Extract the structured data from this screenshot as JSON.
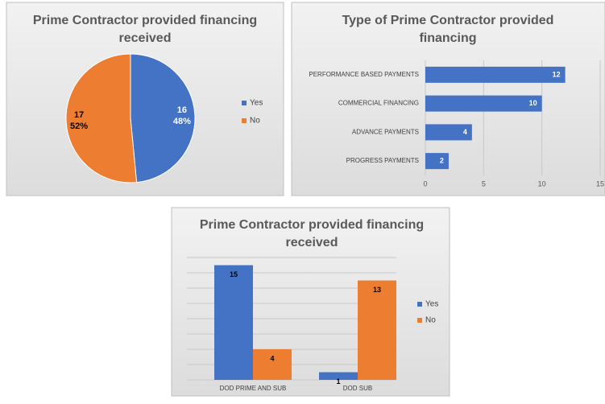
{
  "chart_data": [
    {
      "type": "pie",
      "title": "Prime Contractor provided financing received",
      "categories": [
        "Yes",
        "No"
      ],
      "values": [
        16,
        17
      ],
      "percent_labels": [
        "48%",
        "52%"
      ],
      "colors": [
        "#4472c4",
        "#ed7d31"
      ],
      "legend": "right"
    },
    {
      "type": "hbar",
      "title": "Type of Prime Contractor provided financing",
      "categories": [
        "PERFORMANCE BASED PAYMENTS",
        "COMMERCIAL FINANCING",
        "ADVANCE PAYMENTS",
        "PROGRESS PAYMENTS"
      ],
      "values": [
        12,
        10,
        4,
        2
      ],
      "color": "#4472c4",
      "xlim": [
        0,
        15
      ],
      "xticks": [
        0,
        5,
        10,
        15
      ],
      "grid": true
    },
    {
      "type": "grouped_bar",
      "title": "Prime Contractor provided financing received",
      "categories": [
        "DOD PRIME AND SUB",
        "DOD SUB"
      ],
      "series": [
        {
          "name": "Yes",
          "color": "#4472c4",
          "values": [
            15,
            1
          ]
        },
        {
          "name": "No",
          "color": "#ed7d31",
          "values": [
            4,
            13
          ]
        }
      ],
      "ylim": [
        0,
        16
      ],
      "yticks": [
        0,
        2,
        4,
        6,
        8,
        10,
        12,
        14,
        16
      ],
      "grid": true,
      "legend": "right"
    }
  ]
}
